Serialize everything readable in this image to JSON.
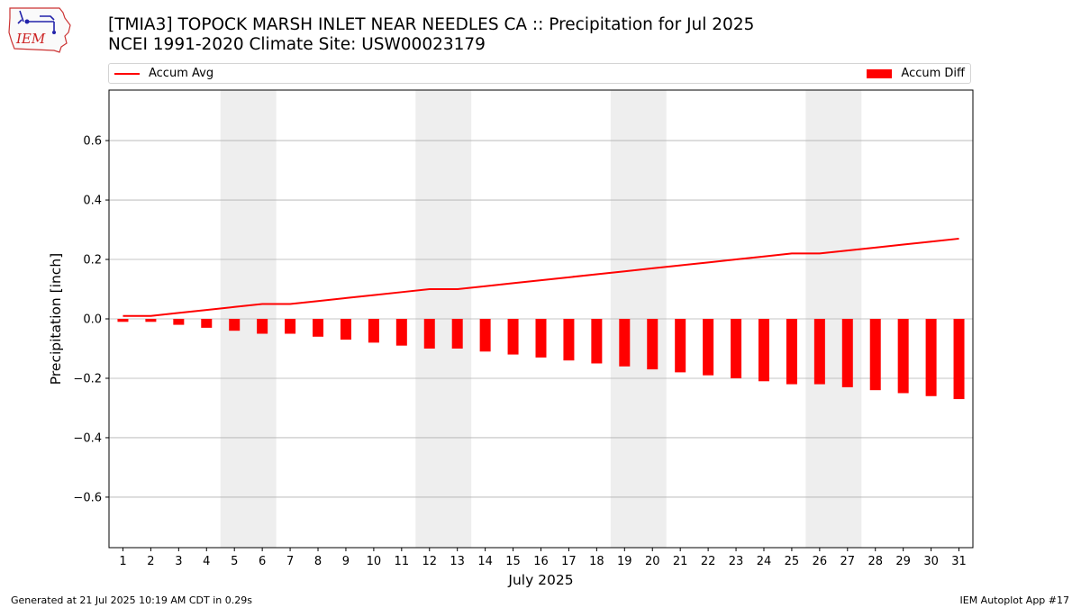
{
  "header": {
    "title_line1": "[TMIA3] TOPOCK MARSH INLET NEAR NEEDLES CA :: Precipitation for Jul 2025",
    "title_line2": "NCEI 1991-2020 Climate Site: USW00023179",
    "logo_text": "IEM"
  },
  "legend": {
    "avg_label": "Accum Avg",
    "diff_label": "Accum Diff"
  },
  "footer": {
    "left": "Generated at 21 Jul 2025 10:19 AM CDT in 0.29s",
    "right": "IEM Autoplot App #17"
  },
  "colors": {
    "series": "#ff0000",
    "weekend_shade": "#eeeeee",
    "grid": "#b0b0b0"
  },
  "chart_data": {
    "type": "bar",
    "title": "[TMIA3] TOPOCK MARSH INLET NEAR NEEDLES CA :: Precipitation for Jul 2025",
    "subtitle": "NCEI 1991-2020 Climate Site: USW00023179",
    "xlabel": "July 2025",
    "ylabel": "Precipitation [inch]",
    "ylim": [
      -0.77,
      0.77
    ],
    "yticks": [
      -0.6,
      -0.4,
      -0.2,
      0.0,
      0.2,
      0.4,
      0.6
    ],
    "ytick_labels": [
      "−0.6",
      "−0.4",
      "−0.2",
      "0.0",
      "0.2",
      "0.4",
      "0.6"
    ],
    "grid": "horizontal",
    "legend_position": "top",
    "x": [
      1,
      2,
      3,
      4,
      5,
      6,
      7,
      8,
      9,
      10,
      11,
      12,
      13,
      14,
      15,
      16,
      17,
      18,
      19,
      20,
      21,
      22,
      23,
      24,
      25,
      26,
      27,
      28,
      29,
      30,
      31
    ],
    "x_labels": [
      "1",
      "2",
      "3",
      "4",
      "5",
      "6",
      "7",
      "8",
      "9",
      "10",
      "11",
      "12",
      "13",
      "14",
      "15",
      "16",
      "17",
      "18",
      "19",
      "20",
      "21",
      "22",
      "23",
      "24",
      "25",
      "26",
      "27",
      "28",
      "29",
      "30",
      "31"
    ],
    "weekend_days": [
      [
        5,
        6
      ],
      [
        12,
        13
      ],
      [
        19,
        20
      ],
      [
        26,
        27
      ]
    ],
    "series": [
      {
        "name": "Accum Avg",
        "type": "line",
        "values": [
          0.01,
          0.01,
          0.02,
          0.03,
          0.04,
          0.05,
          0.05,
          0.06,
          0.07,
          0.08,
          0.09,
          0.1,
          0.1,
          0.11,
          0.12,
          0.13,
          0.14,
          0.15,
          0.16,
          0.17,
          0.18,
          0.19,
          0.2,
          0.21,
          0.22,
          0.22,
          0.23,
          0.24,
          0.25,
          0.26,
          0.27
        ]
      },
      {
        "name": "Accum Diff",
        "type": "bar",
        "values": [
          -0.01,
          -0.01,
          -0.02,
          -0.03,
          -0.04,
          -0.05,
          -0.05,
          -0.06,
          -0.07,
          -0.08,
          -0.09,
          -0.1,
          -0.1,
          -0.11,
          -0.12,
          -0.13,
          -0.14,
          -0.15,
          -0.16,
          -0.17,
          -0.18,
          -0.19,
          -0.2,
          -0.21,
          -0.22,
          -0.22,
          -0.23,
          -0.24,
          -0.25,
          -0.26,
          -0.27
        ]
      }
    ]
  }
}
